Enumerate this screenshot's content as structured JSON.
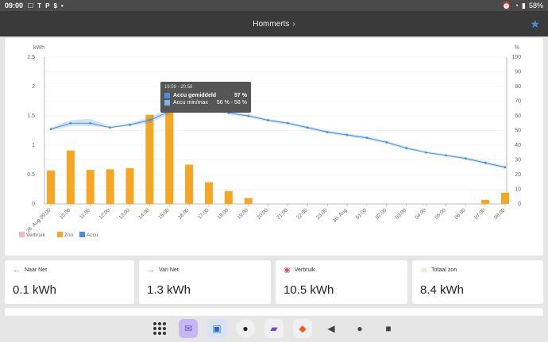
{
  "status_bar": {
    "time": "09:00",
    "battery": "58%"
  },
  "header": {
    "title": "Hommerts",
    "chevron": "›"
  },
  "chart_data": {
    "type": "bar",
    "left_unit": "kWh",
    "right_unit": "%",
    "left_ticks": [
      "0",
      "0.5",
      "1",
      "1.5",
      "2",
      "2.5"
    ],
    "right_ticks": [
      "0",
      "10",
      "20",
      "30",
      "40",
      "50",
      "60",
      "70",
      "80",
      "90",
      "100"
    ],
    "ylim_left": [
      0,
      2.5
    ],
    "ylim_right": [
      0,
      100
    ],
    "categories": [
      "28. Aug 09:00",
      "10:00",
      "11:00",
      "12:00",
      "13:00",
      "14:00",
      "15:00",
      "16:00",
      "17:00",
      "18:00",
      "19:00",
      "20:00",
      "21:00",
      "22:00",
      "23:00",
      "30. Aug",
      "01:00",
      "02:00",
      "03:00",
      "04:00",
      "05:00",
      "06:00",
      "07:00",
      "08:00"
    ],
    "series": [
      {
        "name": "Zon",
        "kind": "bar",
        "color": "#f5a623",
        "values": [
          0.57,
          0.91,
          0.58,
          0.59,
          0.61,
          1.52,
          1.93,
          0.67,
          0.37,
          0.22,
          0.1,
          0,
          0,
          0,
          0,
          0,
          0,
          0,
          0,
          0,
          0,
          0,
          0.07,
          0.19
        ]
      },
      {
        "name": "Accu",
        "kind": "line",
        "color": "#4a8fd8",
        "values": [
          51,
          55,
          55,
          52,
          54,
          57,
          63,
          70,
          67,
          62,
          60,
          57,
          55,
          52,
          49,
          47,
          45,
          42,
          38,
          35,
          33,
          31,
          28,
          25
        ],
        "band_low": [
          50,
          53,
          53,
          52,
          53,
          55,
          61,
          69,
          66,
          61,
          59,
          56,
          54,
          51,
          48,
          46,
          44,
          41,
          37,
          35,
          33,
          30,
          27,
          24
        ],
        "band_high": [
          52,
          57,
          58,
          53,
          55,
          59,
          65,
          71,
          68,
          63,
          61,
          58,
          56,
          53,
          50,
          48,
          46,
          43,
          39,
          36,
          34,
          32,
          29,
          26
        ]
      }
    ],
    "legend": [
      {
        "name": "Verbruik",
        "color": "#f4b6b6"
      },
      {
        "name": "Zon",
        "color": "#f5a623"
      },
      {
        "name": "Accu",
        "color": "#4a8fd8"
      }
    ],
    "tooltip": {
      "header": "19:59 - 20:58",
      "rows": [
        {
          "name": "Accu gemiddeld",
          "value": "57 %"
        },
        {
          "name": "Accu min/max",
          "value": "56 % - 58 %"
        }
      ]
    }
  },
  "stats": [
    {
      "label": "Naar Net",
      "value": "0.1 kWh",
      "icon": "arrow-left-icon",
      "icon_color": "#3fae5b"
    },
    {
      "label": "Van Net",
      "value": "1.3 kWh",
      "icon": "arrow-right-icon",
      "icon_color": "#e05050"
    },
    {
      "label": "Verbruik",
      "value": "10.5 kWh",
      "icon": "gauge-icon",
      "icon_color": "#e05050"
    },
    {
      "label": "Totaal zon",
      "value": "8.4 kWh",
      "icon": "sun-icon",
      "icon_color": "#f5a623"
    }
  ]
}
